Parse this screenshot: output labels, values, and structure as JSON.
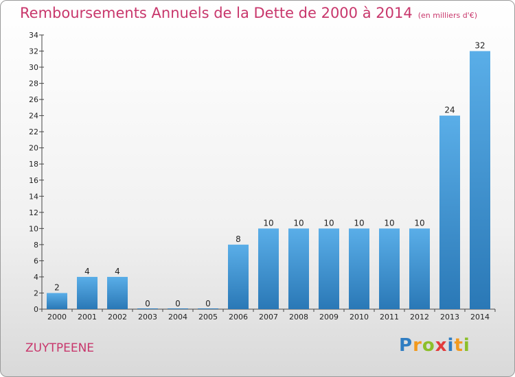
{
  "header": {
    "title": "Remboursements Annuels de la Dette de 2000 à 2014",
    "unit": "(en milliers d'€)"
  },
  "footer": {
    "commune": "ZUYTPEENE",
    "logo": "Proxiti"
  },
  "colors": {
    "title": "#c8366b",
    "bar_top": "#5aaee8",
    "bar_bottom": "#2a78b6"
  },
  "chart_data": {
    "type": "bar",
    "title": "Remboursements Annuels de la Dette de 2000 à 2014",
    "subtitle": "(en milliers d'€)",
    "xlabel": "",
    "ylabel": "",
    "categories": [
      "2000",
      "2001",
      "2002",
      "2003",
      "2004",
      "2005",
      "2006",
      "2007",
      "2008",
      "2009",
      "2010",
      "2011",
      "2012",
      "2013",
      "2014"
    ],
    "values": [
      2,
      4,
      4,
      0,
      0,
      0,
      8,
      10,
      10,
      10,
      10,
      10,
      10,
      24,
      32
    ],
    "ylim": [
      0,
      34
    ],
    "yticks": [
      0,
      2,
      4,
      6,
      8,
      10,
      12,
      14,
      16,
      18,
      20,
      22,
      24,
      26,
      28,
      30,
      32,
      34
    ],
    "grid": false,
    "legend": "none"
  }
}
